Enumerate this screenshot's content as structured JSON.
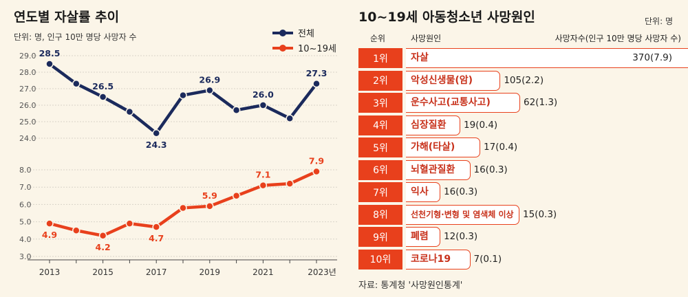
{
  "left": {
    "title": "연도별 자살률 추이",
    "unit": "단위: 명, 인구 10만 명당 사망자 수",
    "source": "자료: 통계청 '사망원인통계'"
  },
  "right": {
    "title": "10~19세 아동청소년 사망원인",
    "unit": "단위: 명",
    "col_rank": "순위",
    "col_cause": "사망원인",
    "col_value": "사망자수(인구 10만 명당 사망자 수)"
  },
  "chart_data": [
    {
      "type": "line",
      "title": "연도별 자살률 추이",
      "x": [
        2013,
        2014,
        2015,
        2016,
        2017,
        2018,
        2019,
        2020,
        2021,
        2022,
        2023
      ],
      "x_tick_labels": [
        "2013",
        "2015",
        "2017",
        "2019",
        "2021",
        "2023년"
      ],
      "upper_panel": {
        "ylim": [
          24.0,
          29.0
        ],
        "yticks": [
          "29.0",
          "28.0",
          "27.0",
          "26.0",
          "25.0",
          "24.0"
        ],
        "series": [
          {
            "name": "전체",
            "color": "#1b2a5c",
            "values": [
              28.5,
              27.3,
              26.5,
              25.6,
              24.3,
              26.6,
              26.9,
              25.7,
              26.0,
              25.2,
              27.3
            ],
            "labels": [
              "28.5",
              "",
              "26.5",
              "",
              "24.3",
              "",
              "26.9",
              "",
              "26.0",
              "",
              "27.3"
            ]
          }
        ]
      },
      "lower_panel": {
        "ylim": [
          3.0,
          8.0
        ],
        "yticks": [
          "8.0",
          "7.0",
          "6.0",
          "5.0",
          "4.0",
          "3.0"
        ],
        "series": [
          {
            "name": "10~19세",
            "color": "#e8401c",
            "values": [
              4.9,
              4.5,
              4.2,
              4.9,
              4.7,
              5.8,
              5.9,
              6.5,
              7.1,
              7.2,
              7.9
            ],
            "labels": [
              "4.9",
              "",
              "4.2",
              "",
              "4.7",
              "",
              "5.9",
              "",
              "7.1",
              "",
              "7.9"
            ]
          }
        ]
      }
    },
    {
      "type": "bar",
      "title": "10~19세 아동청소년 사망원인",
      "orientation": "horizontal",
      "rows": [
        {
          "rank": "1위",
          "cause": "자살",
          "value": 370,
          "label": "370(7.9)"
        },
        {
          "rank": "2위",
          "cause": "악성신생물(암)",
          "value": 105,
          "label": "105(2.2)"
        },
        {
          "rank": "3위",
          "cause": "운수사고(교통사고)",
          "value": 62,
          "label": "62(1.3)"
        },
        {
          "rank": "4위",
          "cause": "심장질환",
          "value": 19,
          "label": "19(0.4)"
        },
        {
          "rank": "5위",
          "cause": "가해(타살)",
          "value": 17,
          "label": "17(0.4)"
        },
        {
          "rank": "6위",
          "cause": "뇌혈관질환",
          "value": 16,
          "label": "16(0.3)"
        },
        {
          "rank": "7위",
          "cause": "익사",
          "value": 16,
          "label": "16(0.3)"
        },
        {
          "rank": "8위",
          "cause": "선천기형·변형 및 염색체 이상",
          "value": 15,
          "label": "15(0.3)"
        },
        {
          "rank": "9위",
          "cause": "폐렴",
          "value": 12,
          "label": "12(0.3)"
        },
        {
          "rank": "10위",
          "cause": "코로나19",
          "value": 7,
          "label": "7(0.1)"
        }
      ]
    }
  ]
}
